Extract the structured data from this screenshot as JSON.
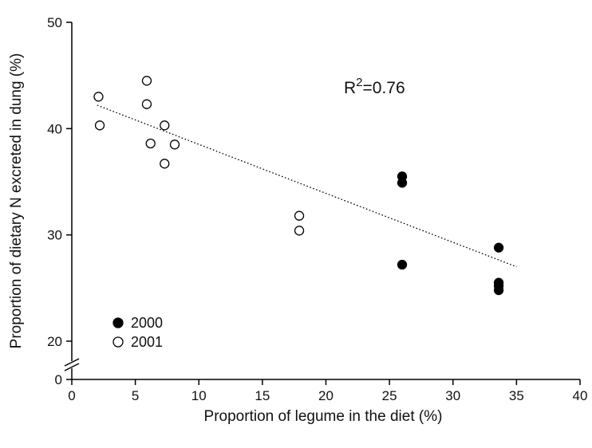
{
  "chart_data": {
    "type": "scatter",
    "xlabel": "Proportion of legume in the diet (%)",
    "ylabel": "Proportion of dietary N excreted in dung (%)",
    "xlim": [
      0,
      40
    ],
    "ylim_break": [
      0,
      20
    ],
    "ylim": [
      20,
      50
    ],
    "x_ticks": [
      "0",
      "5",
      "10",
      "15",
      "20",
      "25",
      "30",
      "35",
      "40"
    ],
    "y_ticks": [
      "0",
      "20",
      "30",
      "40",
      "50"
    ],
    "axis_break": true,
    "series": [
      {
        "name": "2000",
        "marker": "filled-circle",
        "color": "#000000",
        "points": [
          {
            "x": 26,
            "y": 35.5
          },
          {
            "x": 26,
            "y": 34.9
          },
          {
            "x": 26,
            "y": 27.2
          },
          {
            "x": 33.6,
            "y": 28.8
          },
          {
            "x": 33.6,
            "y": 25.5
          },
          {
            "x": 33.6,
            "y": 25.2
          },
          {
            "x": 33.6,
            "y": 24.8
          }
        ]
      },
      {
        "name": "2001",
        "marker": "open-circle",
        "color": "#000000",
        "points": [
          {
            "x": 2.1,
            "y": 43.0
          },
          {
            "x": 2.2,
            "y": 40.3
          },
          {
            "x": 5.9,
            "y": 44.5
          },
          {
            "x": 5.9,
            "y": 42.3
          },
          {
            "x": 6.2,
            "y": 38.6
          },
          {
            "x": 7.3,
            "y": 40.3
          },
          {
            "x": 7.3,
            "y": 36.7
          },
          {
            "x": 8.1,
            "y": 38.5
          },
          {
            "x": 17.9,
            "y": 31.8
          },
          {
            "x": 17.9,
            "y": 30.4
          }
        ]
      }
    ],
    "trendline": {
      "style": "dotted",
      "x": [
        2,
        35
      ],
      "y": [
        42.2,
        27.0
      ]
    },
    "annotation": {
      "text_base": "R",
      "superscript": "2",
      "text_rest": "=0.76"
    },
    "legend_placement": "bottom-left",
    "grid": false
  }
}
